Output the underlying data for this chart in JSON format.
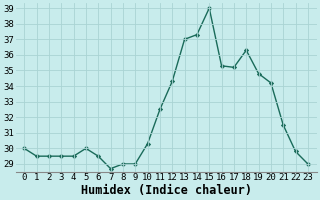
{
  "xlabel": "Humidex (Indice chaleur)",
  "x_values": [
    0,
    1,
    2,
    3,
    4,
    5,
    6,
    7,
    8,
    9,
    10,
    11,
    12,
    13,
    14,
    15,
    16,
    17,
    18,
    19,
    20,
    21,
    22,
    23
  ],
  "y_values": [
    30,
    29.5,
    29.5,
    29.5,
    29.5,
    30,
    29.5,
    28.7,
    29,
    29,
    30.3,
    32.5,
    34.3,
    37,
    37.3,
    39,
    35.3,
    35.2,
    36.3,
    34.8,
    34.2,
    31.5,
    29.8,
    29
  ],
  "line_color": "#1a6b5a",
  "marker": "D",
  "marker_size": 2.2,
  "ylim_min": 28.5,
  "ylim_max": 39.3,
  "yticks": [
    29,
    30,
    31,
    32,
    33,
    34,
    35,
    36,
    37,
    38,
    39
  ],
  "xtick_labels": [
    "0",
    "1",
    "2",
    "3",
    "4",
    "5",
    "6",
    "7",
    "8",
    "9",
    "10",
    "11",
    "12",
    "13",
    "14",
    "15",
    "16",
    "17",
    "18",
    "19",
    "20",
    "21",
    "22",
    "23"
  ],
  "background_color": "#c8ecec",
  "grid_color": "#aad4d4",
  "tick_label_fontsize": 6.5,
  "xlabel_fontsize": 8.5,
  "line_width": 1.0
}
